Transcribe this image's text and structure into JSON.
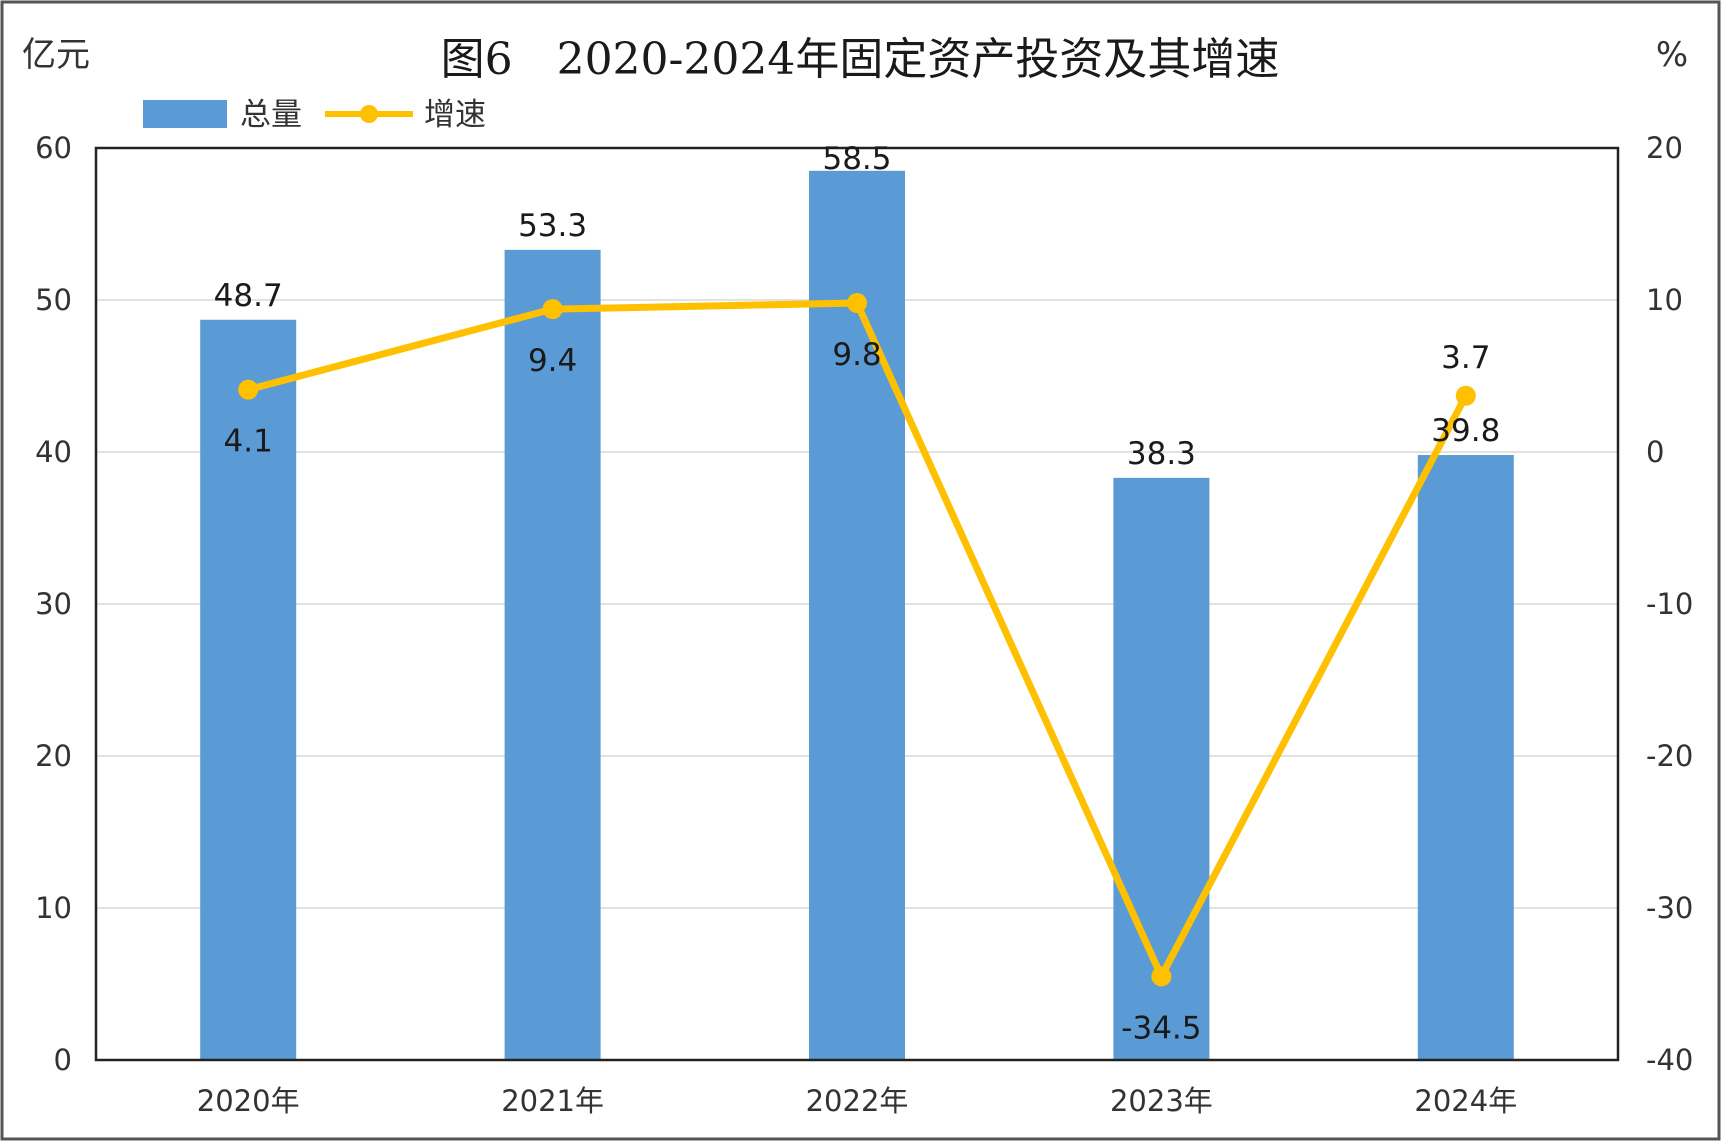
{
  "chart_data": {
    "type": "bar+line",
    "title": "图6　2020-2024年固定资产投资及其增速",
    "left_unit": "亿元",
    "right_unit": "%",
    "categories": [
      "2020年",
      "2021年",
      "2022年",
      "2023年",
      "2024年"
    ],
    "series": [
      {
        "name": "总量",
        "type": "bar",
        "axis": "left",
        "values": [
          48.7,
          53.3,
          58.5,
          38.3,
          39.8
        ],
        "labels": [
          "48.7",
          "53.3",
          "58.5",
          "38.3",
          "39.8"
        ],
        "color": "#5b9bd5"
      },
      {
        "name": "增速",
        "type": "line",
        "axis": "right",
        "values": [
          4.1,
          9.4,
          9.8,
          -34.5,
          3.7
        ],
        "labels": [
          "4.1",
          "9.4",
          "9.8",
          "-34.5",
          "3.7"
        ],
        "color": "#ffc000"
      }
    ],
    "y_left": {
      "min": 0,
      "max": 60,
      "ticks": [
        "0",
        "10",
        "20",
        "30",
        "40",
        "50",
        "60"
      ]
    },
    "y_right": {
      "min": -40,
      "max": 20,
      "ticks": [
        "-40",
        "-30",
        "-20",
        "-10",
        "0",
        "10",
        "20"
      ]
    },
    "grid": true,
    "legend": "top-left"
  }
}
